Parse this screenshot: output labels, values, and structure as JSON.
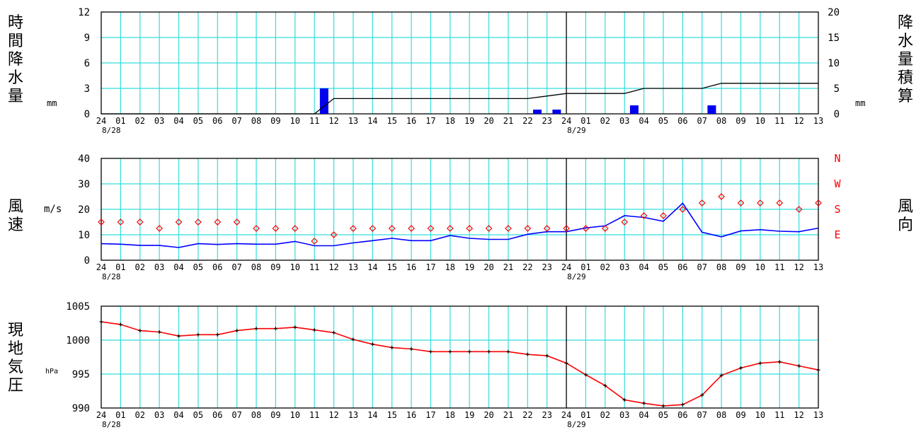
{
  "colors": {
    "grid": "#33dddd",
    "axis": "#000000",
    "rain_bar": "#0000ee",
    "rain_cumulative": "#000000",
    "wind_speed": "#0000ff",
    "wind_direction": "#ff0000",
    "pressure": "#ff0000",
    "pressure_marker": "#000000"
  },
  "labels": {
    "rain_left": [
      "時",
      "間",
      "降",
      "水",
      "量"
    ],
    "rain_right": [
      "降",
      "水",
      "量",
      "積",
      "算"
    ],
    "wind_left": [
      "風",
      "速"
    ],
    "wind_right": [
      "風",
      "向"
    ],
    "pressure_left": [
      "現",
      "地",
      "気",
      "圧"
    ]
  },
  "chart_data": [
    {
      "id": "precipitation",
      "type": "bar",
      "x": [
        "24",
        "01",
        "02",
        "03",
        "04",
        "05",
        "06",
        "07",
        "08",
        "09",
        "10",
        "11",
        "12",
        "13",
        "14",
        "15",
        "16",
        "17",
        "18",
        "19",
        "20",
        "21",
        "22",
        "23",
        "24",
        "01",
        "02",
        "03",
        "04",
        "05",
        "06",
        "07",
        "08",
        "09",
        "10",
        "11",
        "12",
        "13"
      ],
      "dates": [
        "8/28",
        "8/29"
      ],
      "ylabel": "mm",
      "ylim": [
        0,
        12
      ],
      "yticks": [
        0,
        3,
        6,
        9,
        12
      ],
      "y2label": "mm",
      "y2lim": [
        0,
        20
      ],
      "y2ticks": [
        0,
        5,
        10,
        15,
        20
      ],
      "grid": true,
      "series": [
        {
          "kind": "bar",
          "axis": "left",
          "values": [
            0,
            0,
            0,
            0,
            0,
            0,
            0,
            0,
            0,
            0,
            0,
            0,
            3,
            0,
            0,
            0,
            0,
            0,
            0,
            0,
            0,
            0,
            0,
            0.5,
            0.5,
            0,
            0,
            0,
            1,
            0,
            0,
            0,
            1,
            0,
            0,
            0,
            0,
            0
          ]
        },
        {
          "kind": "line",
          "axis": "right",
          "values": [
            0,
            0,
            0,
            0,
            0,
            0,
            0,
            0,
            0,
            0,
            0,
            0,
            3,
            3,
            3,
            3,
            3,
            3,
            3,
            3,
            3,
            3,
            3,
            3.5,
            4,
            4,
            4,
            4,
            5,
            5,
            5,
            5,
            6,
            6,
            6,
            6,
            6,
            6
          ]
        }
      ]
    },
    {
      "id": "wind",
      "type": "line",
      "x": [
        "24",
        "01",
        "02",
        "03",
        "04",
        "05",
        "06",
        "07",
        "08",
        "09",
        "10",
        "11",
        "12",
        "13",
        "14",
        "15",
        "16",
        "17",
        "18",
        "19",
        "20",
        "21",
        "22",
        "23",
        "24",
        "01",
        "02",
        "03",
        "04",
        "05",
        "06",
        "07",
        "08",
        "09",
        "10",
        "11",
        "12",
        "13"
      ],
      "dates": [
        "8/28",
        "8/29"
      ],
      "ylabel": "m/s",
      "ylim": [
        0,
        40
      ],
      "yticks": [
        0,
        10,
        20,
        30,
        40
      ],
      "direction_ticks": [
        "E",
        "S",
        "W",
        "N"
      ],
      "grid": true,
      "series": [
        {
          "kind": "line",
          "values": [
            6.5,
            6.3,
            5.8,
            5.8,
            5.0,
            6.5,
            6.2,
            6.5,
            6.3,
            6.3,
            7.4,
            5.7,
            5.7,
            6.8,
            7.7,
            8.6,
            7.7,
            7.7,
            9.7,
            8.6,
            8.2,
            8.2,
            10.2,
            11.2,
            11.2,
            12.7,
            13.5,
            17.5,
            16.8,
            15.3,
            22.4,
            11.0,
            9.2,
            11.5,
            12.0,
            11.4,
            11.2,
            12.6
          ]
        },
        {
          "kind": "direction",
          "values": [
            15,
            15,
            15,
            12.5,
            15,
            15,
            15,
            15,
            12.5,
            12.5,
            12.5,
            7.5,
            10,
            12.5,
            12.5,
            12.5,
            12.5,
            12.5,
            12.5,
            12.5,
            12.5,
            12.5,
            12.5,
            12.5,
            12.5,
            12.5,
            12.5,
            15,
            17.5,
            17.5,
            20,
            22.5,
            25,
            22.5,
            22.5,
            22.5,
            20,
            22.5
          ]
        }
      ]
    },
    {
      "id": "pressure",
      "type": "line",
      "x": [
        "24",
        "01",
        "02",
        "03",
        "04",
        "05",
        "06",
        "07",
        "08",
        "09",
        "10",
        "11",
        "12",
        "13",
        "14",
        "15",
        "16",
        "17",
        "18",
        "19",
        "20",
        "21",
        "22",
        "23",
        "24",
        "01",
        "02",
        "03",
        "04",
        "05",
        "06",
        "07",
        "08",
        "09",
        "10",
        "11",
        "12",
        "13"
      ],
      "dates": [
        "8/28",
        "8/29"
      ],
      "ylabel": "hPa",
      "ylim": [
        990,
        1005
      ],
      "yticks": [
        990,
        995,
        1000,
        1005
      ],
      "grid": true,
      "series": [
        {
          "kind": "line",
          "values": [
            1002.7,
            1002.3,
            1001.4,
            1001.2,
            1000.6,
            1000.8,
            1000.8,
            1001.4,
            1001.7,
            1001.7,
            1001.9,
            1001.5,
            1001.1,
            1000.1,
            999.4,
            998.9,
            998.7,
            998.3,
            998.3,
            998.3,
            998.3,
            998.3,
            997.9,
            997.7,
            996.6,
            994.9,
            993.3,
            991.2,
            990.7,
            990.3,
            990.5,
            991.9,
            994.8,
            995.9,
            996.6,
            996.8,
            996.2,
            995.6
          ]
        }
      ]
    }
  ]
}
